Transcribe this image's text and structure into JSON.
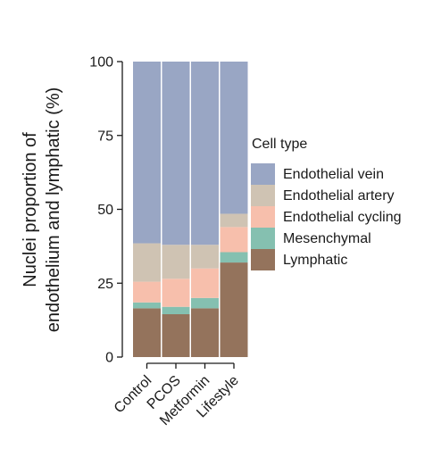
{
  "chart_data": {
    "type": "bar",
    "stacked": true,
    "categories": [
      "Control",
      "PCOS",
      "Metformin",
      "Lifestyle"
    ],
    "ylabel_lines": [
      "Nuclei proportion of",
      "endothelium and lymphatic (%)"
    ],
    "xlabel": "",
    "title": "",
    "ylim": [
      0,
      100
    ],
    "yticks": [
      0,
      25,
      50,
      75,
      100
    ],
    "grid": false,
    "legend": {
      "title": "Cell type",
      "placement": "right"
    },
    "series": [
      {
        "name": "Lymphatic",
        "color": "#94735c",
        "values": [
          16.5,
          14.5,
          16.5,
          32.0
        ]
      },
      {
        "name": "Mesenchymal",
        "color": "#85c0b0",
        "values": [
          2.0,
          2.5,
          3.5,
          3.5
        ]
      },
      {
        "name": "Endothelial cycling",
        "color": "#f7bfac",
        "values": [
          7.0,
          9.5,
          10.0,
          8.5
        ]
      },
      {
        "name": "Endothelial artery",
        "color": "#cfc3b3",
        "values": [
          13.0,
          11.5,
          8.0,
          4.5
        ]
      },
      {
        "name": "Endothelial vein",
        "color": "#99a6c4",
        "values": [
          61.5,
          62.0,
          62.0,
          51.5
        ]
      }
    ],
    "legend_order": [
      "Endothelial vein",
      "Endothelial artery",
      "Endothelial cycling",
      "Mesenchymal",
      "Lymphatic"
    ]
  }
}
